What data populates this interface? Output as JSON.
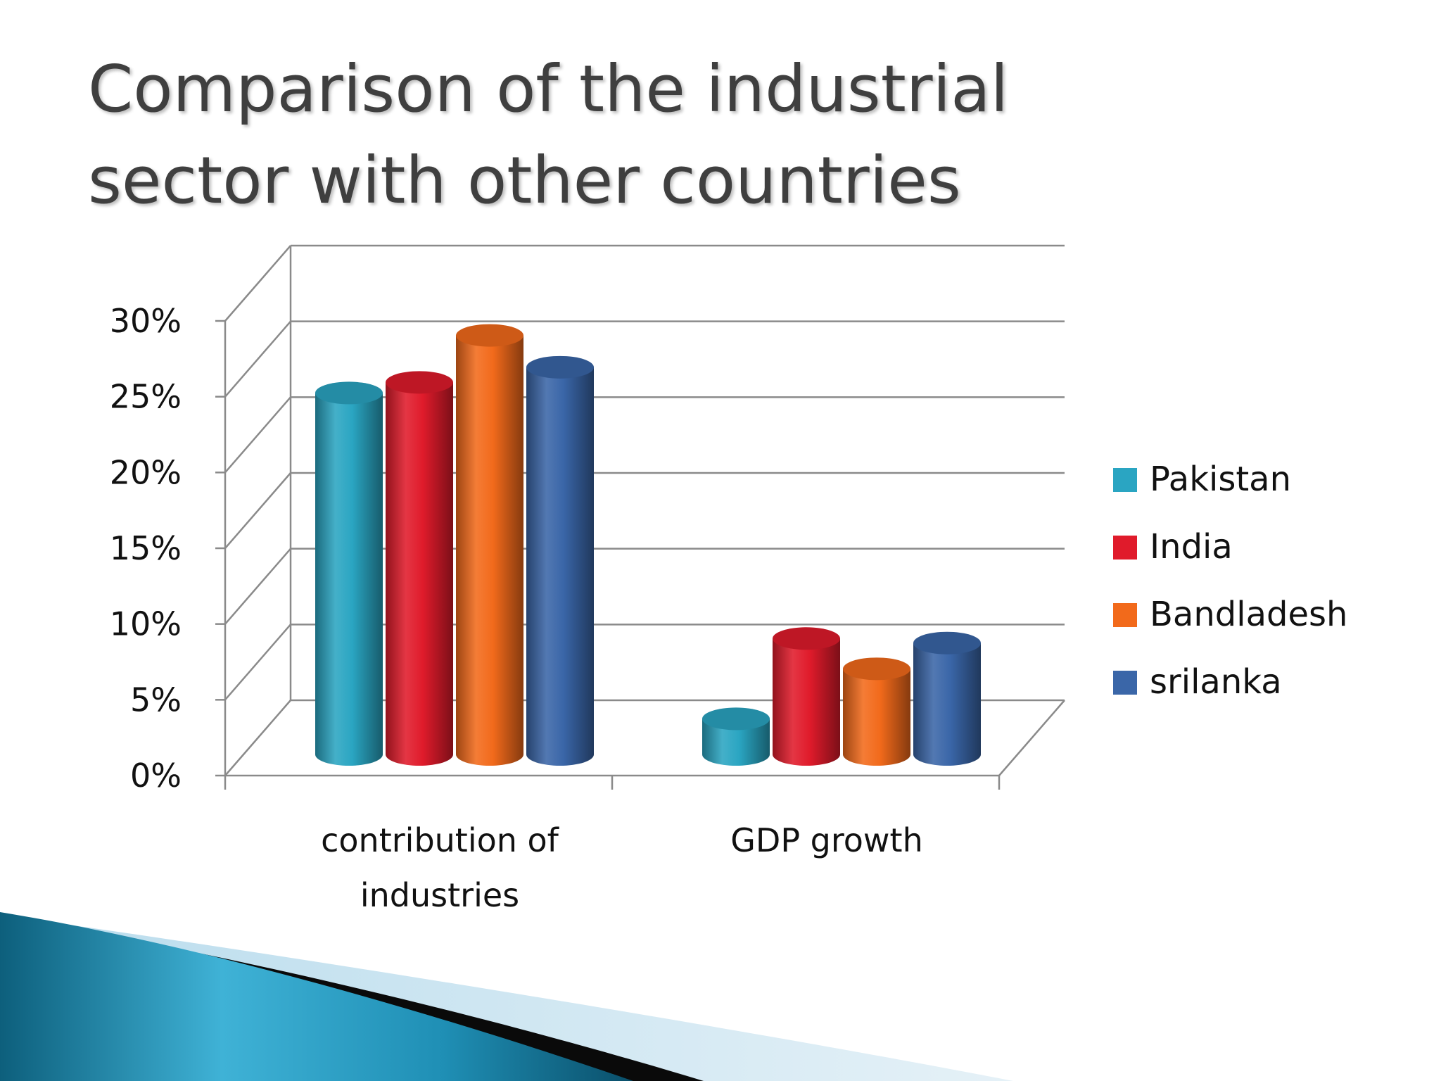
{
  "slide": {
    "title_lines": [
      "Comparison of the industrial",
      "sector with other countries"
    ]
  },
  "chart_data": {
    "type": "bar",
    "style": "3d-cylinder",
    "categories": [
      "contribution of industries",
      "GDP growth"
    ],
    "category_label_lines": [
      [
        "contribution of",
        "industries"
      ],
      [
        "GDP growth"
      ]
    ],
    "series": [
      {
        "name": "Pakistan",
        "color": "#2aa5c2",
        "values": [
          24.5,
          3.0
        ]
      },
      {
        "name": "India",
        "color": "#e01b2b",
        "values": [
          25.2,
          8.3
        ]
      },
      {
        "name": "Bandladesh",
        "color": "#f26a1b",
        "values": [
          28.3,
          6.3
        ]
      },
      {
        "name": "srilanka",
        "color": "#3a66a8",
        "values": [
          26.2,
          8.0
        ]
      }
    ],
    "yticks": [
      "0%",
      "5%",
      "10%",
      "15%",
      "20%",
      "25%",
      "30%"
    ],
    "ylim": [
      0,
      30
    ],
    "grid": true,
    "legend_position": "right"
  }
}
